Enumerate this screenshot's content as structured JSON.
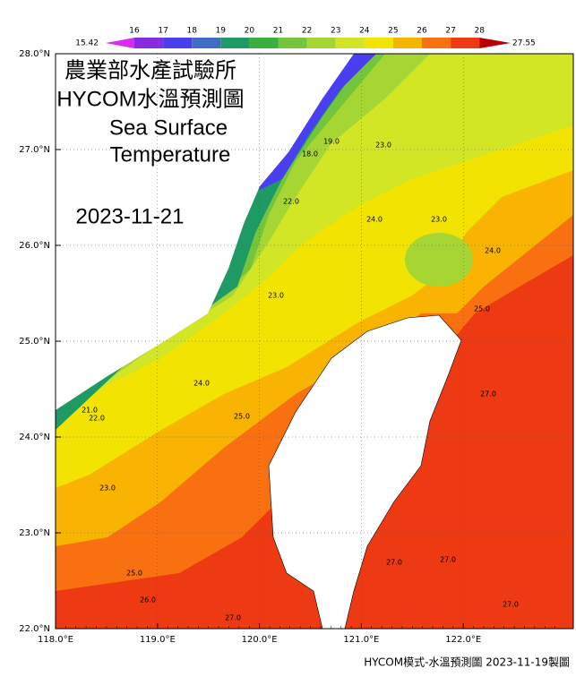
{
  "title": {
    "line1": "農業部水產試驗所",
    "line2": "HYCOM水溫預測圖",
    "line3": "Sea Surface",
    "line4": "Temperature"
  },
  "date": "2023-11-21",
  "colorbar": {
    "min_label": "15.42",
    "max_label": "27.55",
    "ticks": [
      16,
      17,
      18,
      19,
      20,
      21,
      22,
      23,
      24,
      25,
      26,
      27,
      28
    ],
    "colors": [
      "#d82cf0",
      "#8a2be2",
      "#4a3ff0",
      "#3e6cc8",
      "#1e9a64",
      "#38b040",
      "#74c43c",
      "#a6d634",
      "#d2e626",
      "#f2e400",
      "#f8b400",
      "#f87010",
      "#ee3a12",
      "#b80000"
    ]
  },
  "axes": {
    "x_labels": [
      "118.0°E",
      "119.0°E",
      "120.0°E",
      "121.0°E",
      "122.0°E"
    ],
    "y_labels": [
      "28.0°N",
      "27.0°N",
      "26.0°N",
      "25.0°N",
      "24.0°N",
      "23.0°N",
      "22.0°N"
    ]
  },
  "contour_labels": [
    "18.0",
    "19.0",
    "22.0",
    "23.0",
    "24.0",
    "23.0",
    "24.0",
    "25.0",
    "23.0",
    "24.0",
    "21.0",
    "22.0",
    "25.0",
    "23.0",
    "25.0",
    "26.0",
    "27.0",
    "27.0",
    "27.0",
    "27.0",
    "27.0"
  ],
  "footer": "HYCOM模式-水溫預測圖 2023-11-19製圖"
}
